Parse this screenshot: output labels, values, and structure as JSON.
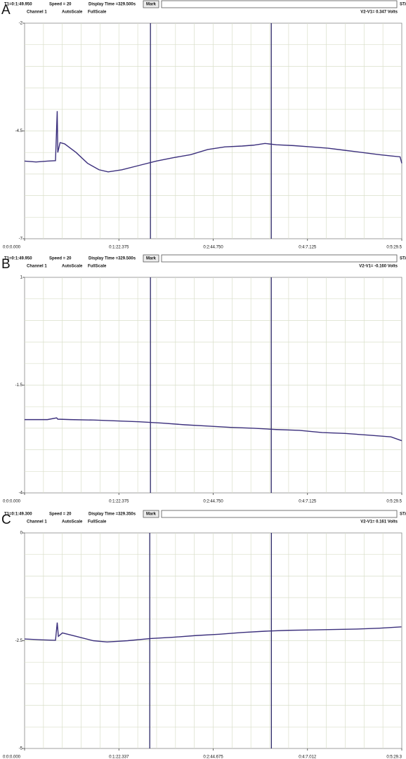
{
  "chart_data": [
    {
      "type": "line",
      "panel_label": "A",
      "header": {
        "t1": "T1=0:1:49.950",
        "speed": "Speed = 20",
        "display_time": "Display Time =329.500s",
        "mark": "Mark",
        "start": "START",
        "channel": "Channel 1",
        "autoscale": "AutoScale",
        "fullscale": "FullScale",
        "delta": "V2-V1= 0.347 Volts"
      },
      "xlim": [
        0,
        329.5
      ],
      "xticks": [
        {
          "value": 0,
          "label": "0:0:0.000"
        },
        {
          "value": 82.375,
          "label": "0:1:22.375"
        },
        {
          "value": 164.75,
          "label": "0:2:44.750"
        },
        {
          "value": 247.125,
          "label": "0:4:7.125"
        },
        {
          "value": 329.5,
          "label": "0:5:29.5"
        }
      ],
      "ylim": [
        -7,
        -2
      ],
      "yticks": [
        -7,
        -4.5,
        -2
      ],
      "grid": true,
      "cursors": [
        109.95,
        215.5
      ],
      "series": [
        {
          "color": "#3b2f7c",
          "x": [
            0,
            10,
            20,
            27,
            28.5,
            29,
            31,
            35,
            45,
            55,
            65,
            73,
            85,
            100,
            115,
            130,
            145,
            160,
            175,
            190,
            200,
            210,
            220,
            235,
            250,
            265,
            280,
            295,
            310,
            320,
            328,
            329.5
          ],
          "values": [
            -5.2,
            -5.22,
            -5.2,
            -5.19,
            -4.04,
            -5.0,
            -4.77,
            -4.8,
            -5.0,
            -5.25,
            -5.4,
            -5.45,
            -5.4,
            -5.3,
            -5.2,
            -5.12,
            -5.05,
            -4.93,
            -4.87,
            -4.85,
            -4.83,
            -4.79,
            -4.82,
            -4.84,
            -4.87,
            -4.9,
            -4.95,
            -5.0,
            -5.05,
            -5.08,
            -5.1,
            -5.25
          ]
        }
      ]
    },
    {
      "type": "line",
      "panel_label": "B",
      "header": {
        "t1": "T1=0:1:49.950",
        "speed": "Speed = 20",
        "display_time": "Display Time =329.500s",
        "mark": "Mark",
        "start": "START",
        "channel": "Channel 1",
        "autoscale": "AutoScale",
        "fullscale": "FullScale",
        "delta": "V2-V1= -0.160 Volts"
      },
      "xlim": [
        0,
        329.5
      ],
      "xticks": [
        {
          "value": 0,
          "label": "0:0:0.000"
        },
        {
          "value": 82.375,
          "label": "0:1:22.375"
        },
        {
          "value": 164.75,
          "label": "0:2:44.750"
        },
        {
          "value": 247.125,
          "label": "0:4:7.125"
        },
        {
          "value": 329.5,
          "label": "0:5:29.5"
        }
      ],
      "ylim": [
        -4,
        1
      ],
      "yticks": [
        -4,
        -1.5,
        1
      ],
      "grid": true,
      "cursors": [
        109.95,
        215.5
      ],
      "series": [
        {
          "color": "#3b2f7c",
          "x": [
            0,
            20,
            28,
            29,
            40,
            60,
            80,
            100,
            120,
            140,
            160,
            180,
            200,
            220,
            240,
            260,
            280,
            300,
            320,
            329.5
          ],
          "values": [
            -2.3,
            -2.3,
            -2.26,
            -2.29,
            -2.3,
            -2.31,
            -2.33,
            -2.35,
            -2.38,
            -2.42,
            -2.45,
            -2.48,
            -2.5,
            -2.53,
            -2.55,
            -2.6,
            -2.62,
            -2.66,
            -2.7,
            -2.79
          ]
        }
      ]
    },
    {
      "type": "line",
      "panel_label": "C",
      "header": {
        "t1": "T1=0:1:49.300",
        "speed": "Speed = 20",
        "display_time": "Display Time =329.350s",
        "mark": "Mark",
        "start": "START",
        "channel": "Channel 1",
        "autoscale": "AutoScale",
        "fullscale": "FullScale",
        "delta": "V2-V1= 0.161 Volts"
      },
      "xlim": [
        0,
        329.35
      ],
      "xticks": [
        {
          "value": 0,
          "label": "0:0:0.000"
        },
        {
          "value": 82.337,
          "label": "0:1:22.337"
        },
        {
          "value": 164.675,
          "label": "0:2:44.675"
        },
        {
          "value": 247.012,
          "label": "0:4:7.012"
        },
        {
          "value": 329.35,
          "label": "0:5:29.3"
        }
      ],
      "ylim": [
        -5,
        0
      ],
      "yticks": [
        -5,
        -2.5,
        0
      ],
      "grid": true,
      "cursors": [
        109.3,
        215.5
      ],
      "series": [
        {
          "color": "#3b2f7c",
          "x": [
            0,
            15,
            27,
            28.5,
            29.5,
            33,
            45,
            60,
            72,
            90,
            110,
            130,
            150,
            170,
            190,
            210,
            230,
            250,
            270,
            290,
            310,
            329
          ],
          "values": [
            -2.46,
            -2.48,
            -2.49,
            -2.08,
            -2.4,
            -2.32,
            -2.4,
            -2.5,
            -2.53,
            -2.5,
            -2.45,
            -2.42,
            -2.38,
            -2.35,
            -2.31,
            -2.28,
            -2.26,
            -2.25,
            -2.24,
            -2.23,
            -2.21,
            -2.18
          ]
        }
      ]
    }
  ]
}
